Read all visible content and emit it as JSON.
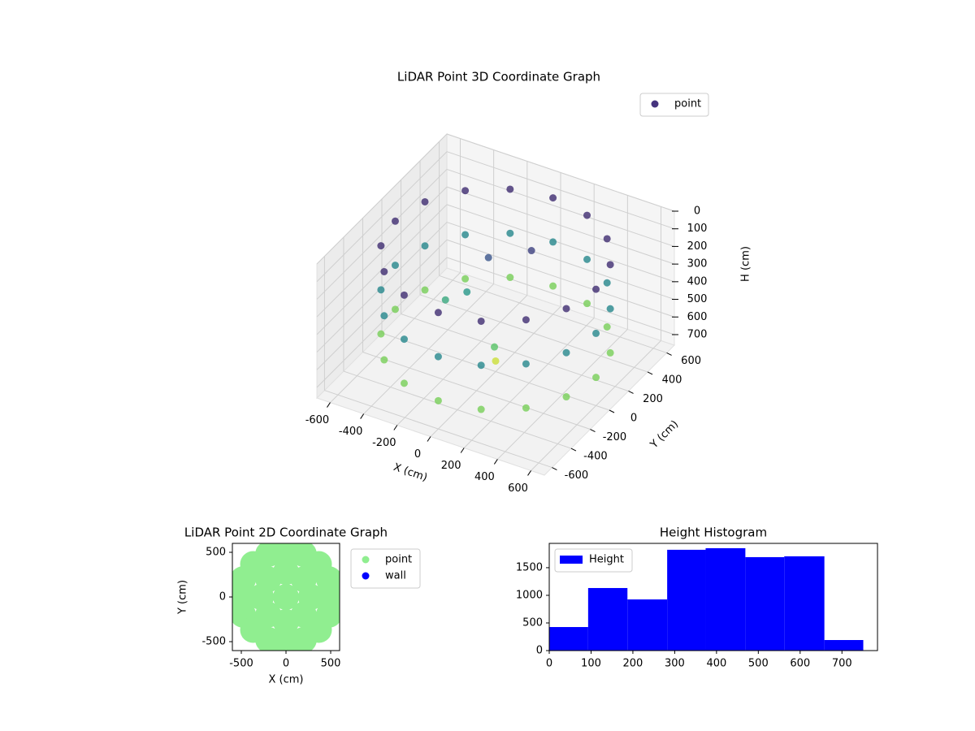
{
  "chart_data": [
    {
      "type": "scatter3d",
      "title": "LiDAR Point 3D Coordinate Graph",
      "xlabel": "X (cm)",
      "ylabel": "Y (cm)",
      "zlabel": "H (cm)",
      "xlim": [
        -680,
        680
      ],
      "ylim": [
        -680,
        680
      ],
      "zlim": [
        760,
        0
      ],
      "xticks": [
        -600,
        -400,
        -200,
        0,
        200,
        400,
        600
      ],
      "yticks": [
        -600,
        -400,
        -200,
        0,
        200,
        400,
        600
      ],
      "zticks": [
        0,
        100,
        200,
        300,
        400,
        500,
        600,
        700
      ],
      "cmap": "viridis",
      "legend": "upper right",
      "grid": true,
      "series": [
        {
          "name": "point",
          "color": "#46337e",
          "x": [
            600,
            554,
            424,
            230,
            0,
            -230,
            -424,
            -554,
            -600,
            -554,
            -424,
            -230,
            0,
            230,
            424,
            554,
            600,
            554,
            424,
            230,
            0,
            -230,
            -424,
            -554,
            -600,
            -554,
            -424,
            -230,
            0,
            230,
            424,
            554,
            600,
            554,
            424,
            230,
            0,
            -230,
            -424,
            -554,
            -600,
            -554,
            -424,
            -230,
            0,
            230,
            424,
            554,
            0,
            -100,
            -200,
            100,
            -300,
            50
          ],
          "y": [
            0,
            230,
            424,
            554,
            600,
            554,
            424,
            230,
            0,
            -230,
            -424,
            -554,
            -600,
            -554,
            -424,
            -230,
            0,
            230,
            424,
            554,
            600,
            554,
            424,
            230,
            0,
            -230,
            -424,
            -554,
            -600,
            -554,
            -424,
            -230,
            0,
            230,
            424,
            554,
            600,
            554,
            424,
            230,
            0,
            -230,
            -424,
            -554,
            -600,
            -554,
            -424,
            -230,
            0,
            100,
            50,
            200,
            0,
            -100
          ],
          "z": [
            100,
            100,
            100,
            100,
            100,
            100,
            100,
            100,
            100,
            100,
            100,
            100,
            100,
            100,
            100,
            100,
            350,
            350,
            350,
            350,
            350,
            350,
            350,
            350,
            350,
            350,
            350,
            350,
            350,
            350,
            350,
            350,
            600,
            600,
            600,
            600,
            600,
            600,
            600,
            600,
            600,
            600,
            600,
            600,
            600,
            600,
            600,
            600,
            700,
            200,
            400,
            150,
            450,
            550
          ]
        }
      ]
    },
    {
      "type": "scatter",
      "title": "LiDAR Point 2D Coordinate Graph",
      "xlabel": "X (cm)",
      "ylabel": "Y (cm)",
      "xlim": [
        -600,
        600
      ],
      "ylim": [
        -600,
        600
      ],
      "xticks": [
        -500,
        0,
        500
      ],
      "yticks": [
        -500,
        0,
        500
      ],
      "legend": "outside right",
      "series": [
        {
          "name": "point",
          "color": "#90ee90",
          "x": [
            520,
            480,
            368,
            199,
            0,
            -199,
            -368,
            -480,
            -520,
            -480,
            -368,
            -199,
            0,
            199,
            368,
            480,
            280,
            198,
            0,
            -198,
            -280,
            -198,
            0,
            198,
            0
          ],
          "y": [
            0,
            199,
            368,
            480,
            520,
            480,
            368,
            199,
            0,
            -199,
            -368,
            -480,
            -520,
            -480,
            -368,
            -199,
            0,
            198,
            280,
            198,
            0,
            -198,
            -280,
            -198,
            0
          ]
        },
        {
          "name": "wall",
          "color": "#0000ff",
          "x": [],
          "y": []
        }
      ]
    },
    {
      "type": "histogram",
      "title": "Height Histogram",
      "xlim": [
        0,
        785
      ],
      "ylim": [
        0,
        1940
      ],
      "xticks": [
        0,
        100,
        200,
        300,
        400,
        500,
        600,
        700
      ],
      "yticks": [
        0,
        500,
        1000,
        1500
      ],
      "legend": "upper left",
      "bins": [
        0,
        93,
        187,
        282,
        374,
        469,
        562,
        658,
        751
      ],
      "series": [
        {
          "name": "Height",
          "color": "#0000ff",
          "values": [
            426,
            1132,
            926,
            1824,
            1853,
            1691,
            1706,
            191
          ]
        }
      ]
    }
  ]
}
